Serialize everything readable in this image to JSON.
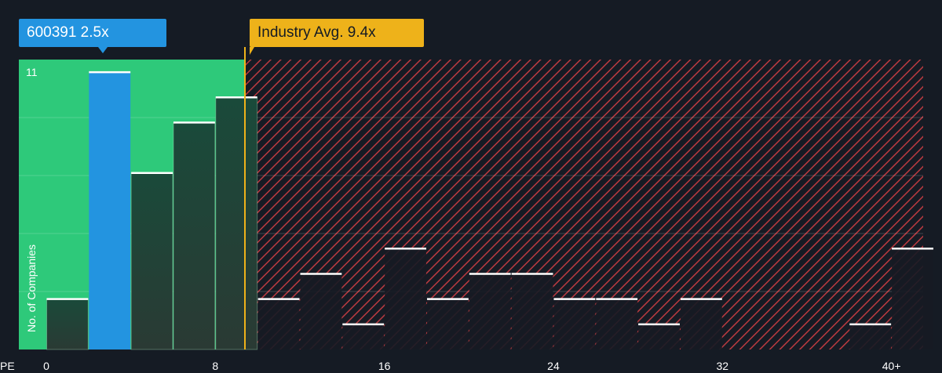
{
  "company_label": "600391 2.5x",
  "industry_label": "Industry Avg. 9.4x",
  "chart_data": {
    "type": "bar",
    "xlabel": "PE",
    "ylabel": "No. of Companies",
    "x_ticks": [
      "0",
      "8",
      "16",
      "24",
      "32",
      "40+"
    ],
    "x_tick_values": [
      0,
      8,
      16,
      24,
      32,
      40
    ],
    "y_ticks": [
      "11"
    ],
    "y_tick_values": [
      11
    ],
    "xlim": [
      -1.3,
      41.5
    ],
    "ylim": [
      0,
      11.5
    ],
    "bin_width": 2,
    "bins": [
      0,
      2,
      4,
      6,
      8,
      10,
      12,
      14,
      16,
      18,
      20,
      22,
      24,
      26,
      28,
      30,
      32,
      34,
      36,
      38,
      40
    ],
    "values": [
      2,
      11,
      7,
      9,
      10,
      2,
      3,
      1,
      4,
      2,
      3,
      3,
      2,
      2,
      1,
      2,
      0,
      0,
      0,
      1,
      4
    ],
    "company_value": 2.5,
    "industry_avg": 9.4,
    "below_avg_zone_color": "#2ec97a",
    "above_avg_zone_color": "#c23b41",
    "company_bar_color": "#2394e0",
    "industry_line_color": "#eeb21a"
  }
}
